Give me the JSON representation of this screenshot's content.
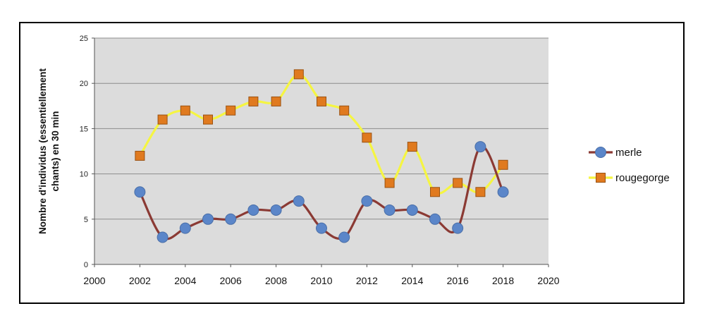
{
  "chart_data": {
    "type": "line",
    "title": "",
    "xlabel": "",
    "ylabel": "Nombre d'individus (essentiellement chants) en 30 min",
    "ylabel_lines": [
      "Nombre d'individus (essentiellement",
      "chants) en 30 min"
    ],
    "xlim": [
      2000,
      2020
    ],
    "ylim": [
      0,
      25
    ],
    "xticks": [
      2000,
      2002,
      2004,
      2006,
      2008,
      2010,
      2012,
      2014,
      2016,
      2018,
      2020
    ],
    "yticks": [
      0,
      5,
      10,
      15,
      20,
      25
    ],
    "grid": "horizontal",
    "legend_position": "right",
    "plot_background": "#dcdcdc",
    "series": [
      {
        "name": "merle",
        "line_color": "#8b3a34",
        "marker": "circle",
        "marker_color": "#5b86c9",
        "x": [
          2002,
          2003,
          2004,
          2005,
          2006,
          2007,
          2008,
          2009,
          2010,
          2011,
          2012,
          2013,
          2014,
          2015,
          2016,
          2017,
          2018
        ],
        "values": [
          8,
          3,
          4,
          5,
          5,
          6,
          6,
          7,
          4,
          3,
          7,
          6,
          6,
          5,
          4,
          13,
          8
        ]
      },
      {
        "name": "rougegorge",
        "line_color": "#f5f542",
        "marker": "square",
        "marker_color": "#e07a1f",
        "x": [
          2002,
          2003,
          2004,
          2005,
          2006,
          2007,
          2008,
          2009,
          2010,
          2011,
          2012,
          2013,
          2014,
          2015,
          2016,
          2017,
          2018
        ],
        "values": [
          12,
          16,
          17,
          16,
          17,
          18,
          18,
          21,
          18,
          17,
          14,
          9,
          13,
          8,
          9,
          8,
          11
        ]
      }
    ]
  }
}
